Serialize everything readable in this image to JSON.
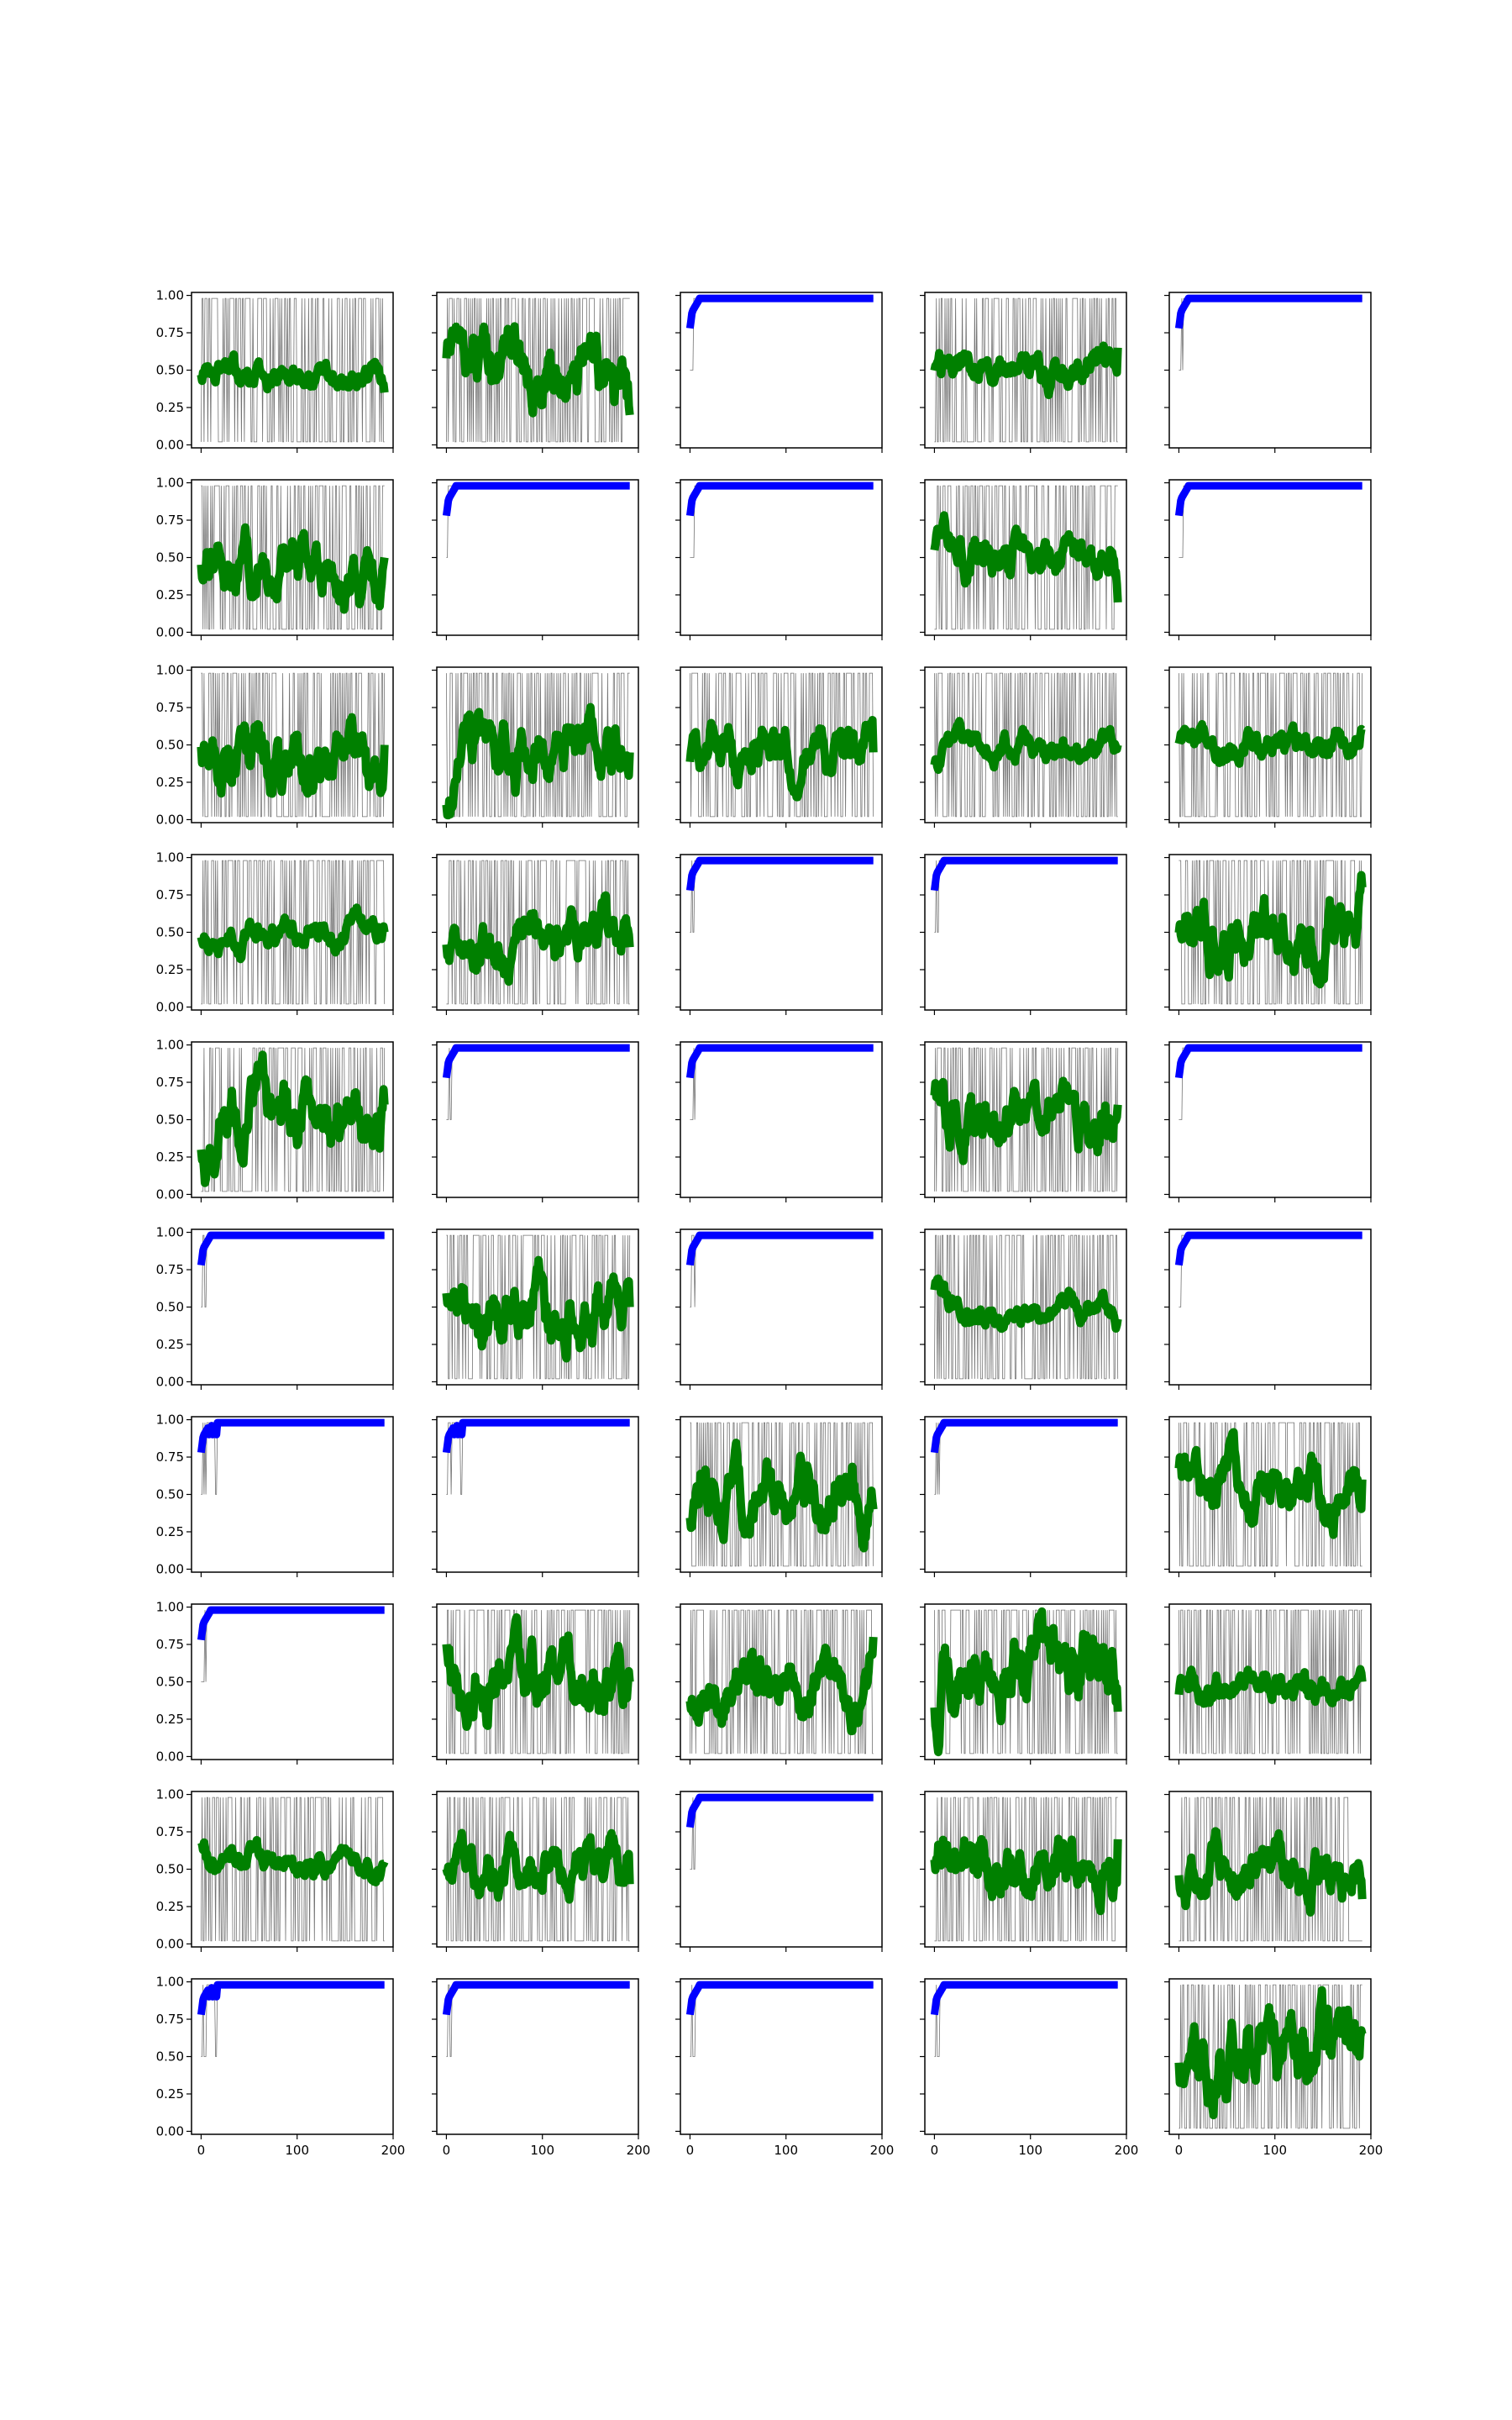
{
  "chart_data": {
    "type": "line",
    "layout": {
      "rows": 10,
      "cols": 5,
      "sharex": true,
      "sharey": true
    },
    "xlim": [
      -10,
      200
    ],
    "ylim": [
      -0.02,
      1.02
    ],
    "xticks": [
      0,
      100,
      200
    ],
    "yticks": [
      0.0,
      0.25,
      0.5,
      0.75,
      1.0
    ],
    "xtick_labels": [
      "0",
      "100",
      "200"
    ],
    "ytick_labels": [
      "0.00",
      "0.25",
      "0.50",
      "0.75",
      "1.00"
    ],
    "colors": {
      "raw": "#000000",
      "converged": "#0000ff",
      "fluctuating": "#008000"
    },
    "panels": [
      {
        "row": 0,
        "col": 0,
        "kind": "fluctuating",
        "seed": 11,
        "mean": 0.46,
        "wiggle": 0.06,
        "start": 0.5,
        "end": 0.35
      },
      {
        "row": 0,
        "col": 1,
        "kind": "fluctuating",
        "seed": 12,
        "mean": 0.5,
        "wiggle": 0.16,
        "start": 0.55,
        "end": 0.2
      },
      {
        "row": 0,
        "col": 2,
        "kind": "converged",
        "seed": 13,
        "final": 0.98
      },
      {
        "row": 0,
        "col": 3,
        "kind": "fluctuating",
        "seed": 14,
        "mean": 0.5,
        "wiggle": 0.08,
        "start": 0.5,
        "end": 0.65
      },
      {
        "row": 0,
        "col": 4,
        "kind": "converged",
        "seed": 15,
        "final": 0.98
      },
      {
        "row": 1,
        "col": 0,
        "kind": "fluctuating",
        "seed": 21,
        "mean": 0.42,
        "wiggle": 0.13,
        "start": 0.45,
        "end": 0.5
      },
      {
        "row": 1,
        "col": 1,
        "kind": "converged",
        "seed": 22,
        "final": 0.98
      },
      {
        "row": 1,
        "col": 2,
        "kind": "converged",
        "seed": 23,
        "final": 0.98
      },
      {
        "row": 1,
        "col": 3,
        "kind": "fluctuating",
        "seed": 24,
        "mean": 0.52,
        "wiggle": 0.1,
        "start": 0.5,
        "end": 0.2
      },
      {
        "row": 1,
        "col": 4,
        "kind": "converged",
        "seed": 25,
        "final": 0.98
      },
      {
        "row": 2,
        "col": 0,
        "kind": "fluctuating",
        "seed": 31,
        "mean": 0.36,
        "wiggle": 0.16,
        "start": 0.4,
        "end": 0.5
      },
      {
        "row": 2,
        "col": 1,
        "kind": "fluctuating",
        "seed": 32,
        "mean": 0.48,
        "wiggle": 0.14,
        "start": 0.15,
        "end": 0.45
      },
      {
        "row": 2,
        "col": 2,
        "kind": "fluctuating",
        "seed": 33,
        "mean": 0.48,
        "wiggle": 0.11,
        "start": 0.35,
        "end": 0.45
      },
      {
        "row": 2,
        "col": 3,
        "kind": "fluctuating",
        "seed": 34,
        "mean": 0.48,
        "wiggle": 0.06,
        "start": 0.4,
        "end": 0.5
      },
      {
        "row": 2,
        "col": 4,
        "kind": "fluctuating",
        "seed": 35,
        "mean": 0.5,
        "wiggle": 0.07,
        "start": 0.5,
        "end": 0.6
      },
      {
        "row": 3,
        "col": 0,
        "kind": "fluctuating",
        "seed": 41,
        "mean": 0.5,
        "wiggle": 0.06,
        "start": 0.5,
        "end": 0.5
      },
      {
        "row": 3,
        "col": 1,
        "kind": "fluctuating",
        "seed": 42,
        "mean": 0.48,
        "wiggle": 0.11,
        "start": 0.4,
        "end": 0.4
      },
      {
        "row": 3,
        "col": 2,
        "kind": "converged",
        "seed": 43,
        "final": 0.98
      },
      {
        "row": 3,
        "col": 3,
        "kind": "converged",
        "seed": 44,
        "final": 0.98
      },
      {
        "row": 3,
        "col": 4,
        "kind": "fluctuating",
        "seed": 45,
        "mean": 0.5,
        "wiggle": 0.15,
        "start": 0.4,
        "end": 0.8
      },
      {
        "row": 4,
        "col": 0,
        "kind": "fluctuating",
        "seed": 51,
        "mean": 0.52,
        "wiggle": 0.16,
        "start": 0.3,
        "end": 0.6
      },
      {
        "row": 4,
        "col": 1,
        "kind": "converged",
        "seed": 52,
        "final": 0.98
      },
      {
        "row": 4,
        "col": 2,
        "kind": "converged",
        "seed": 53,
        "final": 0.98
      },
      {
        "row": 4,
        "col": 3,
        "kind": "fluctuating",
        "seed": 54,
        "mean": 0.48,
        "wiggle": 0.13,
        "start": 0.6,
        "end": 0.6
      },
      {
        "row": 4,
        "col": 4,
        "kind": "converged",
        "seed": 55,
        "final": 0.98
      },
      {
        "row": 5,
        "col": 0,
        "kind": "converged",
        "seed": 61,
        "final": 0.98
      },
      {
        "row": 5,
        "col": 1,
        "kind": "fluctuating",
        "seed": 62,
        "mean": 0.46,
        "wiggle": 0.15,
        "start": 0.65,
        "end": 0.5
      },
      {
        "row": 5,
        "col": 2,
        "kind": "converged",
        "seed": 63,
        "final": 0.98
      },
      {
        "row": 5,
        "col": 3,
        "kind": "fluctuating",
        "seed": 64,
        "mean": 0.47,
        "wiggle": 0.06,
        "start": 0.65,
        "end": 0.42
      },
      {
        "row": 5,
        "col": 4,
        "kind": "converged",
        "seed": 65,
        "final": 0.98
      },
      {
        "row": 6,
        "col": 0,
        "kind": "converged",
        "seed": 71,
        "final": 0.98,
        "dip": true
      },
      {
        "row": 6,
        "col": 1,
        "kind": "converged",
        "seed": 72,
        "final": 0.98,
        "dip": true
      },
      {
        "row": 6,
        "col": 2,
        "kind": "fluctuating",
        "seed": 73,
        "mean": 0.46,
        "wiggle": 0.14,
        "start": 0.45,
        "end": 0.4
      },
      {
        "row": 6,
        "col": 3,
        "kind": "converged",
        "seed": 74,
        "final": 0.98
      },
      {
        "row": 6,
        "col": 4,
        "kind": "fluctuating",
        "seed": 75,
        "mean": 0.55,
        "wiggle": 0.12,
        "start": 0.6,
        "end": 0.6
      },
      {
        "row": 7,
        "col": 0,
        "kind": "converged",
        "seed": 81,
        "final": 0.98
      },
      {
        "row": 7,
        "col": 1,
        "kind": "fluctuating",
        "seed": 82,
        "mean": 0.47,
        "wiggle": 0.15,
        "start": 0.65,
        "end": 0.5
      },
      {
        "row": 7,
        "col": 2,
        "kind": "fluctuating",
        "seed": 83,
        "mean": 0.44,
        "wiggle": 0.12,
        "start": 0.4,
        "end": 0.8
      },
      {
        "row": 7,
        "col": 3,
        "kind": "fluctuating",
        "seed": 84,
        "mean": 0.58,
        "wiggle": 0.17,
        "start": 0.25,
        "end": 0.3
      },
      {
        "row": 7,
        "col": 4,
        "kind": "fluctuating",
        "seed": 85,
        "mean": 0.47,
        "wiggle": 0.08,
        "start": 0.45,
        "end": 0.5
      },
      {
        "row": 8,
        "col": 0,
        "kind": "fluctuating",
        "seed": 91,
        "mean": 0.52,
        "wiggle": 0.06,
        "start": 0.65,
        "end": 0.55
      },
      {
        "row": 8,
        "col": 1,
        "kind": "fluctuating",
        "seed": 92,
        "mean": 0.5,
        "wiggle": 0.12,
        "start": 0.55,
        "end": 0.4
      },
      {
        "row": 8,
        "col": 2,
        "kind": "converged",
        "seed": 93,
        "final": 0.98
      },
      {
        "row": 8,
        "col": 3,
        "kind": "fluctuating",
        "seed": 94,
        "mean": 0.5,
        "wiggle": 0.14,
        "start": 0.65,
        "end": 0.7
      },
      {
        "row": 8,
        "col": 4,
        "kind": "fluctuating",
        "seed": 95,
        "mean": 0.52,
        "wiggle": 0.12,
        "start": 0.45,
        "end": 0.3
      },
      {
        "row": 9,
        "col": 0,
        "kind": "converged",
        "seed": 101,
        "final": 0.98,
        "dip": true
      },
      {
        "row": 9,
        "col": 1,
        "kind": "converged",
        "seed": 102,
        "final": 0.98
      },
      {
        "row": 9,
        "col": 2,
        "kind": "converged",
        "seed": 103,
        "final": 0.98
      },
      {
        "row": 9,
        "col": 3,
        "kind": "converged",
        "seed": 104,
        "final": 0.98
      },
      {
        "row": 9,
        "col": 4,
        "kind": "fluctuating",
        "seed": 105,
        "mean": 0.48,
        "wiggle": 0.18,
        "start": 0.35,
        "end": 0.65
      }
    ]
  }
}
